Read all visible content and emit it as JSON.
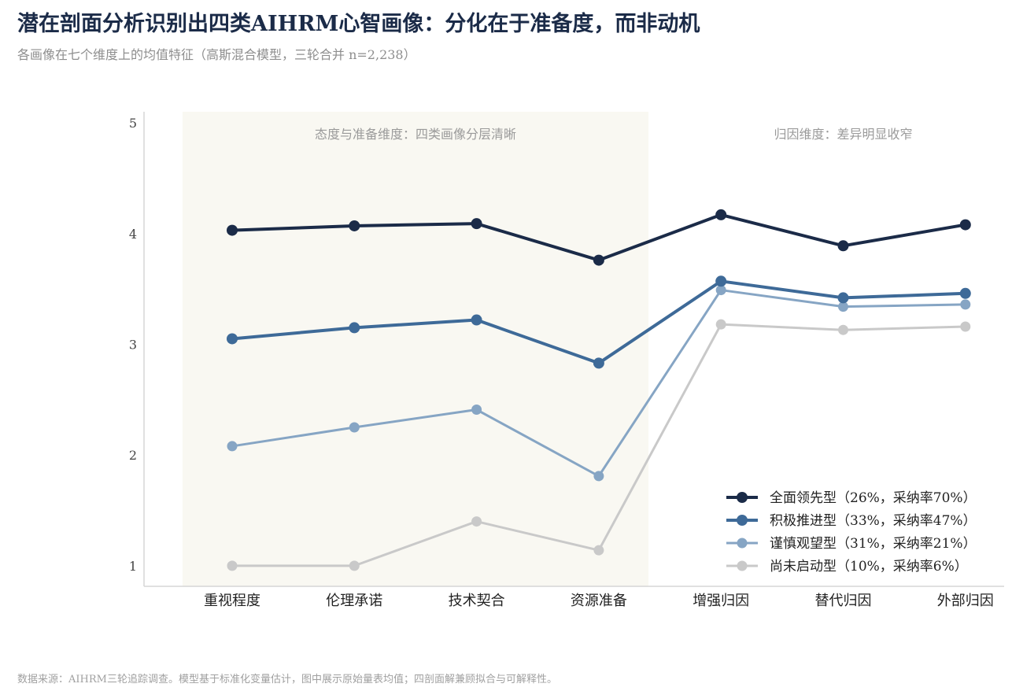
{
  "title": "潜在剖面分析识别出四类AIHRM心智画像：分化在于准备度，而非动机",
  "subtitle": "各画像在七个维度上的均值特征（高斯混合模型，三轮合并 n=2,238）",
  "footer": "数据来源：AIHRM三轮追踪调查。模型基于标准化变量估计，图中展示原始量表均值；四剖面解兼顾拟合与可解释性。",
  "colors": {
    "band": "#f9f8f2",
    "axis": "#d6d6d6"
  },
  "chart_data": {
    "type": "line",
    "categories": [
      "重视程度",
      "伦理承诺",
      "技术契合",
      "资源准备",
      "增强归因",
      "替代归因",
      "外部归因"
    ],
    "ylim": [
      0.8,
      5.2
    ],
    "yticks": [
      1,
      2,
      3,
      4,
      5
    ],
    "grid": false,
    "legend_position": "bottom-right",
    "bands": [
      {
        "from": 0,
        "to": 3,
        "label": "态度与准备维度：四类画像分层清晰",
        "shaded": true
      },
      {
        "from": 4,
        "to": 6,
        "label": "归因维度：差异明显收窄",
        "shaded": false
      }
    ],
    "series": [
      {
        "name": "全面领先型（26%，采纳率70%）",
        "color": "#1b2b48",
        "stroke": 4,
        "marker": 7,
        "values": [
          4.03,
          4.07,
          4.09,
          3.76,
          4.17,
          3.89,
          4.08
        ]
      },
      {
        "name": "积极推进型（33%，采纳率47%）",
        "color": "#3e6a98",
        "stroke": 4,
        "marker": 7,
        "values": [
          3.05,
          3.15,
          3.22,
          2.83,
          3.57,
          3.42,
          3.46
        ]
      },
      {
        "name": "谨慎观望型（31%，采纳率21%）",
        "color": "#86a5c4",
        "stroke": 3,
        "marker": 6.5,
        "values": [
          2.08,
          2.25,
          2.41,
          1.81,
          3.49,
          3.34,
          3.36
        ]
      },
      {
        "name": "尚未启动型（10%，采纳率6%）",
        "color": "#c9c9c9",
        "stroke": 3,
        "marker": 6.5,
        "values": [
          1.0,
          1.0,
          1.4,
          1.14,
          3.18,
          3.13,
          3.16
        ]
      }
    ]
  }
}
